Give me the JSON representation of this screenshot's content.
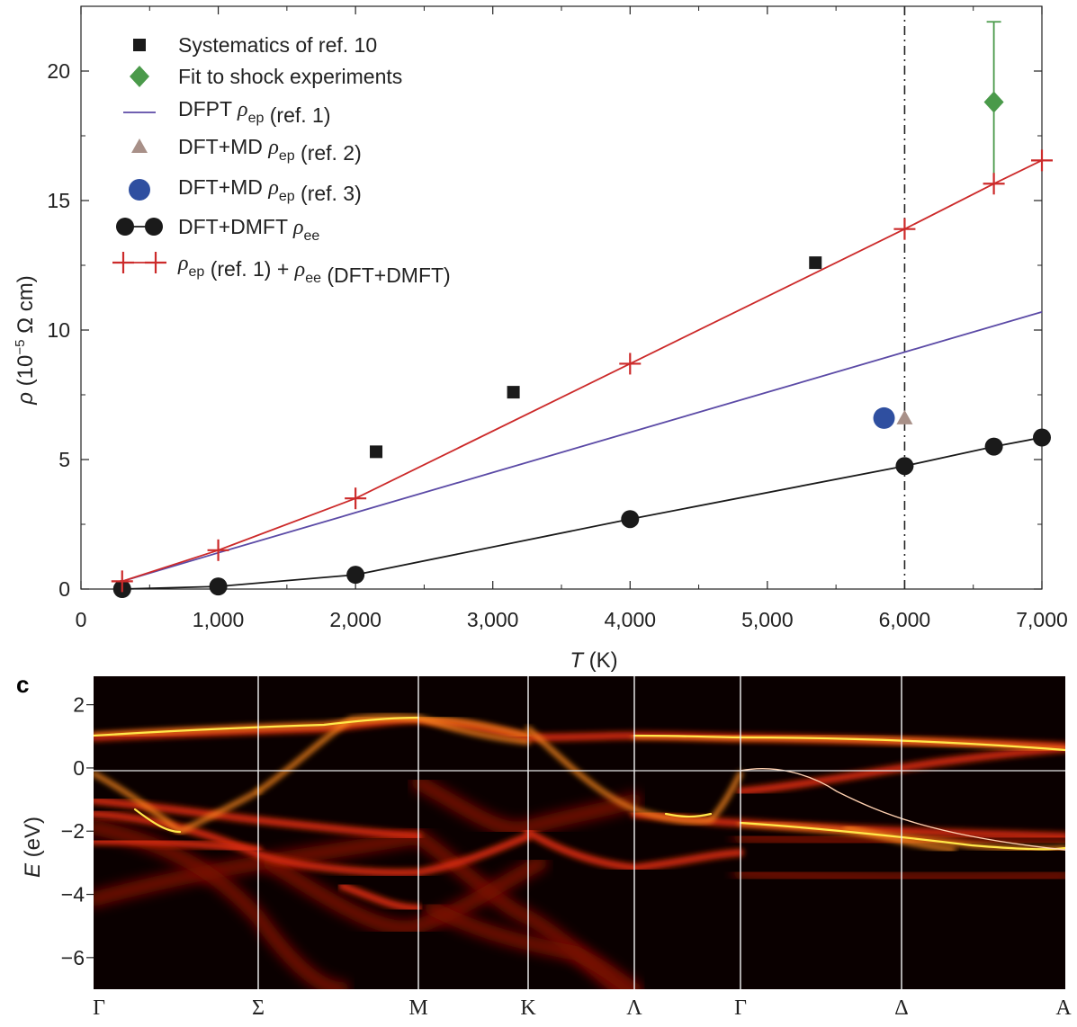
{
  "chart_data": [
    {
      "type": "line",
      "xlabel": "T (K)",
      "ylabel": "ρ (10⁻⁵ Ω cm)",
      "xlim": [
        0,
        7000
      ],
      "ylim": [
        0,
        22.5
      ],
      "x_ticks": [
        "0",
        "1,000",
        "2,000",
        "3,000",
        "4,000",
        "5,000",
        "6,000",
        "7,000"
      ],
      "x_tick_values": [
        0,
        1000,
        2000,
        3000,
        4000,
        5000,
        6000,
        7000
      ],
      "y_ticks": [
        "0",
        "5",
        "10",
        "15",
        "20"
      ],
      "y_tick_values": [
        0,
        5,
        10,
        15,
        20
      ],
      "vertical_dashdot_line_x": 6000,
      "legend_position": "top-left",
      "series": [
        {
          "name": "Systematics of ref. 10",
          "style": "square-markers",
          "color": "#1a1a1a",
          "x": [
            2150,
            3150,
            5350
          ],
          "y": [
            5.3,
            7.6,
            12.6
          ]
        },
        {
          "name": "Fit to shock experiments",
          "style": "diamond-marker-with-errorbar",
          "color": "#4a9a4a",
          "x": [
            6650
          ],
          "y": [
            18.8
          ],
          "y_err_low": [
            16.0
          ],
          "y_err_high": [
            21.9
          ]
        },
        {
          "name": "DFPT ρep (ref. 1)",
          "style": "line",
          "color": "#5b4aa6",
          "x": [
            300,
            1000,
            2000,
            3000,
            4000,
            5000,
            6000,
            7000
          ],
          "y": [
            0.3,
            1.4,
            2.95,
            4.5,
            6.05,
            7.6,
            9.15,
            10.7
          ]
        },
        {
          "name": "DFT+MD ρep (ref. 2)",
          "style": "triangle-marker",
          "color": "#a89088",
          "x": [
            6000
          ],
          "y": [
            6.6
          ]
        },
        {
          "name": "DFT+MD ρep (ref. 3)",
          "style": "circle-marker",
          "color": "#2f4fa0",
          "x": [
            5850
          ],
          "y": [
            6.6
          ]
        },
        {
          "name": "DFT+DMFT ρee",
          "style": "line-with-circles",
          "color": "#1a1a1a",
          "x": [
            300,
            1000,
            2000,
            4000,
            6000,
            6650,
            7000
          ],
          "y": [
            0.0,
            0.1,
            0.55,
            2.7,
            4.75,
            5.5,
            5.85
          ]
        },
        {
          "name": "ρep (ref. 1) + ρee (DFT+DMFT)",
          "style": "line-with-plus",
          "color": "#cc2a2a",
          "x": [
            300,
            1000,
            2000,
            4000,
            6000,
            6650,
            7000
          ],
          "y": [
            0.3,
            1.5,
            3.5,
            8.7,
            13.9,
            15.65,
            16.55
          ]
        }
      ],
      "legend_labels": [
        "Systematics of ref. 10",
        "Fit to shock experiments",
        "DFPT ρep (ref. 1)",
        "DFT+MD ρep (ref. 2)",
        "DFT+MD ρep (ref. 3)",
        "DFT+DMFT ρee",
        "ρep (ref. 1) + ρee (DFT+DMFT)"
      ]
    },
    {
      "type": "heatmap",
      "panel_label": "c",
      "ylabel": "E (eV)",
      "ylim": [
        -7.0,
        2.9
      ],
      "y_ticks": [
        "2",
        "0",
        "−2",
        "−4",
        "−6"
      ],
      "y_tick_values": [
        2,
        0,
        -2,
        -4,
        -6
      ],
      "k_path_labels": [
        "Γ",
        "Σ",
        "M",
        "K",
        "Λ",
        "Γ",
        "Δ",
        "A"
      ],
      "fermi_level": 0,
      "colormap": [
        "#000000",
        "#8a0c05",
        "#e02a10",
        "#ff8a1a",
        "#ffe84a",
        "#ffffe0"
      ]
    }
  ]
}
